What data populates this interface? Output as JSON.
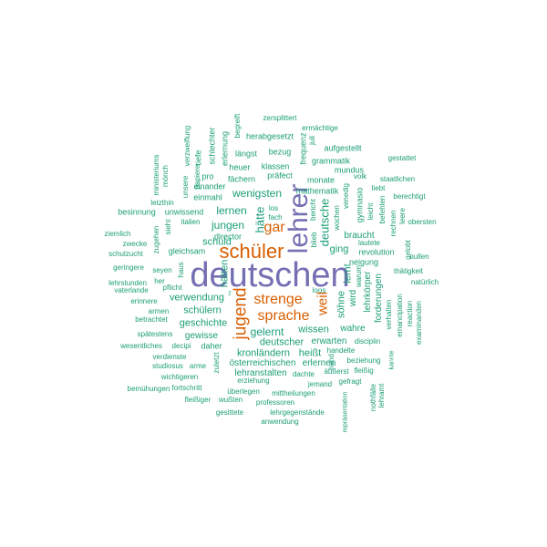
{
  "colors": {
    "primary": "#7570b3",
    "secondary": "#d95f02",
    "tertiary": "#1b9e77"
  },
  "words": [
    {
      "text": "deutschen",
      "tier": "primary"
    },
    {
      "text": "lehrer",
      "tier": "primary"
    },
    {
      "text": "schüler",
      "tier": "secondary"
    },
    {
      "text": "jugend",
      "tier": "secondary"
    },
    {
      "text": "strenge",
      "tier": "secondary"
    },
    {
      "text": "sprache",
      "tier": "secondary"
    },
    {
      "text": "gar",
      "tier": "secondary"
    },
    {
      "text": "weil",
      "tier": "secondary"
    },
    {
      "text": "hätte",
      "tier": "tertiary"
    },
    {
      "text": "deutsche",
      "tier": "tertiary"
    },
    {
      "text": "lernen",
      "tier": "tertiary"
    },
    {
      "text": "jungen",
      "tier": "tertiary"
    },
    {
      "text": "wenigsten",
      "tier": "tertiary"
    },
    {
      "text": "gelernt",
      "tier": "tertiary"
    },
    {
      "text": "wissen",
      "tier": "tertiary"
    },
    {
      "text": "verwendung",
      "tier": "tertiary"
    },
    {
      "text": "schülern",
      "tier": "tertiary"
    },
    {
      "text": "geschichte",
      "tier": "tertiary"
    },
    {
      "text": "hätten",
      "tier": "tertiary"
    },
    {
      "text": "deutscher",
      "tier": "tertiary"
    },
    {
      "text": "kronländern",
      "tier": "tertiary"
    },
    {
      "text": "heißt",
      "tier": "tertiary"
    },
    {
      "text": "erwarten",
      "tier": "tertiary"
    },
    {
      "text": "schuld",
      "tier": "tertiary"
    },
    {
      "text": "ging",
      "tier": "tertiary"
    },
    {
      "text": "lernt",
      "tier": "tertiary"
    },
    {
      "text": "söhne",
      "tier": "tertiary"
    },
    {
      "text": "braucht",
      "tier": "tertiary"
    },
    {
      "text": "wahre",
      "tier": "tertiary"
    },
    {
      "text": "forderungen",
      "tier": "tertiary"
    },
    {
      "text": "lehrkörper",
      "tier": "tertiary"
    },
    {
      "text": "wird",
      "tier": "tertiary"
    },
    {
      "text": "gewisse",
      "tier": "tertiary"
    },
    {
      "text": "österreichischen",
      "tier": "tertiary"
    },
    {
      "text": "erlernen",
      "tier": "tertiary"
    },
    {
      "text": "lehranstalten",
      "tier": "tertiary"
    },
    {
      "text": "daher",
      "tier": "tertiary"
    },
    {
      "text": "einmahl",
      "tier": "tertiary"
    },
    {
      "text": "director",
      "tier": "tertiary"
    },
    {
      "text": "unwissend",
      "tier": "tertiary"
    },
    {
      "text": "fächern",
      "tier": "tertiary"
    },
    {
      "text": "heuer",
      "tier": "tertiary"
    },
    {
      "text": "klassen",
      "tier": "tertiary"
    },
    {
      "text": "präfect",
      "tier": "tertiary"
    },
    {
      "text": "mathematik",
      "tier": "tertiary"
    },
    {
      "text": "monate",
      "tier": "tertiary"
    },
    {
      "text": "mundus",
      "tier": "tertiary"
    },
    {
      "text": "grammatik",
      "tier": "tertiary"
    },
    {
      "text": "aufgestellt",
      "tier": "tertiary"
    },
    {
      "text": "frequenz",
      "tier": "tertiary"
    },
    {
      "text": "juli",
      "tier": "tertiary"
    },
    {
      "text": "ermächtige",
      "tier": "tertiary"
    },
    {
      "text": "zersplittert",
      "tier": "tertiary"
    },
    {
      "text": "begreift",
      "tier": "tertiary"
    },
    {
      "text": "herabgesetzt",
      "tier": "tertiary"
    },
    {
      "text": "bezug",
      "tier": "tertiary"
    },
    {
      "text": "längst",
      "tier": "tertiary"
    },
    {
      "text": "erlernung",
      "tier": "tertiary"
    },
    {
      "text": "schlechter",
      "tier": "tertiary"
    },
    {
      "text": "tiefe",
      "tier": "tertiary"
    },
    {
      "text": "verzweiflung",
      "tier": "tertiary"
    },
    {
      "text": "pro",
      "tier": "tertiary"
    },
    {
      "text": "papiere",
      "tier": "tertiary"
    },
    {
      "text": "einander",
      "tier": "tertiary"
    },
    {
      "text": "unsere",
      "tier": "tertiary"
    },
    {
      "text": "ministeriums",
      "tier": "tertiary"
    },
    {
      "text": "mönch",
      "tier": "tertiary"
    },
    {
      "text": "letzthin",
      "tier": "tertiary"
    },
    {
      "text": "besinnung",
      "tier": "tertiary"
    },
    {
      "text": "italien",
      "tier": "tertiary"
    },
    {
      "text": "zugehen",
      "tier": "tertiary"
    },
    {
      "text": "sieht",
      "tier": "tertiary"
    },
    {
      "text": "ziemlich",
      "tier": "tertiary"
    },
    {
      "text": "zwecke",
      "tier": "tertiary"
    },
    {
      "text": "schulzucht",
      "tier": "tertiary"
    },
    {
      "text": "gleichsam",
      "tier": "tertiary"
    },
    {
      "text": "geringere",
      "tier": "tertiary"
    },
    {
      "text": "seyen",
      "tier": "tertiary"
    },
    {
      "text": "haus",
      "tier": "tertiary"
    },
    {
      "text": "lehrstunden",
      "tier": "tertiary"
    },
    {
      "text": "her",
      "tier": "tertiary"
    },
    {
      "text": "vaterlande",
      "tier": "tertiary"
    },
    {
      "text": "pflicht",
      "tier": "tertiary"
    },
    {
      "text": "erinnere",
      "tier": "tertiary"
    },
    {
      "text": "armen",
      "tier": "tertiary"
    },
    {
      "text": "betrachtet",
      "tier": "tertiary"
    },
    {
      "text": "spätestens",
      "tier": "tertiary"
    },
    {
      "text": "wesentliches",
      "tier": "tertiary"
    },
    {
      "text": "decipi",
      "tier": "tertiary"
    },
    {
      "text": "verdienste",
      "tier": "tertiary"
    },
    {
      "text": "studiosus",
      "tier": "tertiary"
    },
    {
      "text": "arme",
      "tier": "tertiary"
    },
    {
      "text": "wichtigeren",
      "tier": "tertiary"
    },
    {
      "text": "fortschritt",
      "tier": "tertiary"
    },
    {
      "text": "bemühungen",
      "tier": "tertiary"
    },
    {
      "text": "fleißiger",
      "tier": "tertiary"
    },
    {
      "text": "wußten",
      "tier": "tertiary"
    },
    {
      "text": "überlegen",
      "tier": "tertiary"
    },
    {
      "text": "gesittete",
      "tier": "tertiary"
    },
    {
      "text": "professoren",
      "tier": "tertiary"
    },
    {
      "text": "lehrgegenstände",
      "tier": "tertiary"
    },
    {
      "text": "anwendung",
      "tier": "tertiary"
    },
    {
      "text": "mittheilungen",
      "tier": "tertiary"
    },
    {
      "text": "jemand",
      "tier": "tertiary"
    },
    {
      "text": "dachte",
      "tier": "tertiary"
    },
    {
      "text": "erziehung",
      "tier": "tertiary"
    },
    {
      "text": "zuletzt",
      "tier": "tertiary"
    },
    {
      "text": "äußerst",
      "tier": "tertiary"
    },
    {
      "text": "gefragt",
      "tier": "tertiary"
    },
    {
      "text": "repräsentation",
      "tier": "tertiary"
    },
    {
      "text": "hand",
      "tier": "tertiary"
    },
    {
      "text": "beziehung",
      "tier": "tertiary"
    },
    {
      "text": "handelte",
      "tier": "tertiary"
    },
    {
      "text": "fleißig",
      "tier": "tertiary"
    },
    {
      "text": "disciplin",
      "tier": "tertiary"
    },
    {
      "text": "nothfälle",
      "tier": "tertiary"
    },
    {
      "text": "lehramt",
      "tier": "tertiary"
    },
    {
      "text": "kannte",
      "tier": "tertiary"
    },
    {
      "text": "verhalten",
      "tier": "tertiary"
    },
    {
      "text": "emancipation",
      "tier": "tertiary"
    },
    {
      "text": "revolution",
      "tier": "tertiary"
    },
    {
      "text": "neigung",
      "tier": "tertiary"
    },
    {
      "text": "lautete",
      "tier": "tertiary"
    },
    {
      "text": "reaction",
      "tier": "tertiary"
    },
    {
      "text": "examinanden",
      "tier": "tertiary"
    },
    {
      "text": "natürlich",
      "tier": "tertiary"
    },
    {
      "text": "thätigkeit",
      "tier": "tertiary"
    },
    {
      "text": "nullen",
      "tier": "tertiary"
    },
    {
      "text": "gelobt",
      "tier": "tertiary"
    },
    {
      "text": "obersten",
      "tier": "tertiary"
    },
    {
      "text": "rechnen",
      "tier": "tertiary"
    },
    {
      "text": "leere",
      "tier": "tertiary"
    },
    {
      "text": "berechtigt",
      "tier": "tertiary"
    },
    {
      "text": "staatlichen",
      "tier": "tertiary"
    },
    {
      "text": "gestattet",
      "tier": "tertiary"
    },
    {
      "text": "liebt",
      "tier": "tertiary"
    },
    {
      "text": "befehlen",
      "tier": "tertiary"
    },
    {
      "text": "leicht",
      "tier": "tertiary"
    },
    {
      "text": "gymnasio",
      "tier": "tertiary"
    },
    {
      "text": "venedig",
      "tier": "tertiary"
    },
    {
      "text": "volk",
      "tier": "tertiary"
    },
    {
      "text": "wochen",
      "tier": "tertiary"
    },
    {
      "text": "bericht",
      "tier": "tertiary"
    },
    {
      "text": "blieb",
      "tier": "tertiary"
    },
    {
      "text": "warum",
      "tier": "tertiary"
    },
    {
      "text": "los",
      "tier": "tertiary"
    },
    {
      "text": "fach",
      "tier": "tertiary"
    },
    {
      "text": "loos",
      "tier": "tertiary"
    },
    {
      "text": "z",
      "tier": "tertiary"
    }
  ]
}
